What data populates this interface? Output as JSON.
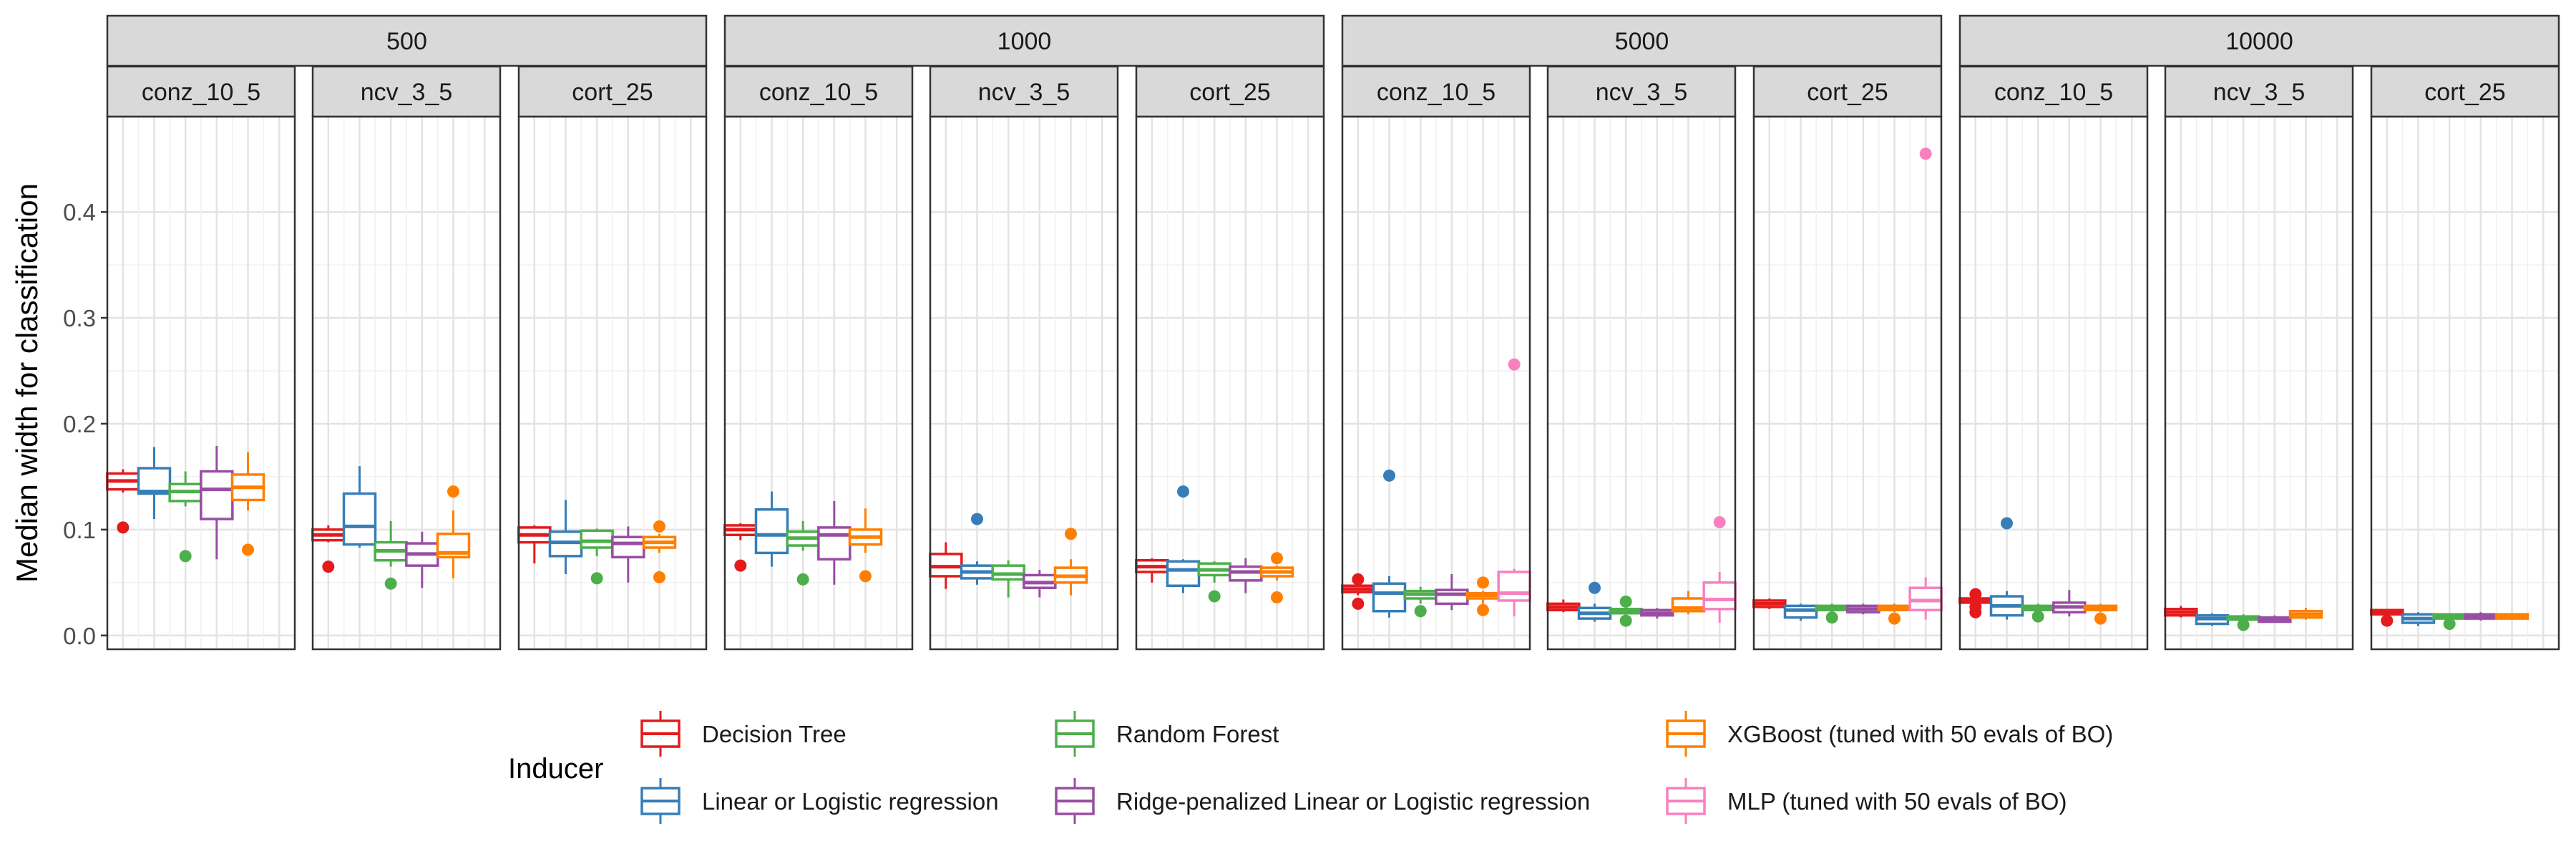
{
  "chart_data": {
    "type": "boxplot",
    "ylabel": "Median width for classification",
    "xlabel": "",
    "ylim": [
      -0.013,
      0.49
    ],
    "yticks": [
      0.0,
      0.1,
      0.2,
      0.3,
      0.4
    ],
    "ytick_labels": [
      "0.0",
      "0.1",
      "0.2",
      "0.3",
      "0.4"
    ],
    "grid": true,
    "legend_position": "bottom",
    "legend_title": "Inducer",
    "inducers": [
      {
        "name": "Decision Tree",
        "color": "#E41A1C"
      },
      {
        "name": "Linear or Logistic regression",
        "color": "#377EB8"
      },
      {
        "name": "Random Forest",
        "color": "#4DAF4A"
      },
      {
        "name": "Ridge-penalized Linear or Logistic regression",
        "color": "#984EA3"
      },
      {
        "name": "XGBoost (tuned with 50 evals of BO)",
        "color": "#FF7F00"
      },
      {
        "name": "MLP (tuned with 50 evals of BO)",
        "color": "#F781BF"
      }
    ],
    "groups": [
      {
        "label": "500",
        "panels": [
          {
            "label": "conz_10_5",
            "boxes": [
              {
                "inducer": 0,
                "min": 0.135,
                "q1": 0.138,
                "median": 0.146,
                "q3": 0.153,
                "max": 0.157,
                "outliers": [
                  0.102
                ]
              },
              {
                "inducer": 1,
                "min": 0.11,
                "q1": 0.134,
                "median": 0.136,
                "q3": 0.158,
                "max": 0.178,
                "outliers": []
              },
              {
                "inducer": 2,
                "min": 0.122,
                "q1": 0.127,
                "median": 0.136,
                "q3": 0.143,
                "max": 0.155,
                "outliers": [
                  0.075
                ]
              },
              {
                "inducer": 3,
                "min": 0.072,
                "q1": 0.11,
                "median": 0.138,
                "q3": 0.155,
                "max": 0.179,
                "outliers": []
              },
              {
                "inducer": 4,
                "min": 0.118,
                "q1": 0.128,
                "median": 0.14,
                "q3": 0.152,
                "max": 0.173,
                "outliers": [
                  0.081
                ]
              }
            ]
          },
          {
            "label": "ncv_3_5",
            "boxes": [
              {
                "inducer": 0,
                "min": 0.088,
                "q1": 0.09,
                "median": 0.095,
                "q3": 0.1,
                "max": 0.104,
                "outliers": [
                  0.065
                ]
              },
              {
                "inducer": 1,
                "min": 0.083,
                "q1": 0.086,
                "median": 0.103,
                "q3": 0.134,
                "max": 0.16,
                "outliers": []
              },
              {
                "inducer": 2,
                "min": 0.065,
                "q1": 0.071,
                "median": 0.08,
                "q3": 0.088,
                "max": 0.108,
                "outliers": [
                  0.049
                ]
              },
              {
                "inducer": 3,
                "min": 0.045,
                "q1": 0.066,
                "median": 0.077,
                "q3": 0.087,
                "max": 0.098,
                "outliers": []
              },
              {
                "inducer": 4,
                "min": 0.054,
                "q1": 0.074,
                "median": 0.078,
                "q3": 0.096,
                "max": 0.118,
                "outliers": [
                  0.136
                ]
              }
            ]
          },
          {
            "label": "cort_25",
            "boxes": [
              {
                "inducer": 0,
                "min": 0.068,
                "q1": 0.088,
                "median": 0.095,
                "q3": 0.102,
                "max": 0.104,
                "outliers": []
              },
              {
                "inducer": 1,
                "min": 0.058,
                "q1": 0.075,
                "median": 0.088,
                "q3": 0.098,
                "max": 0.128,
                "outliers": []
              },
              {
                "inducer": 2,
                "min": 0.075,
                "q1": 0.083,
                "median": 0.089,
                "q3": 0.099,
                "max": 0.101,
                "outliers": [
                  0.054
                ]
              },
              {
                "inducer": 3,
                "min": 0.05,
                "q1": 0.074,
                "median": 0.087,
                "q3": 0.093,
                "max": 0.103,
                "outliers": []
              },
              {
                "inducer": 4,
                "min": 0.078,
                "q1": 0.083,
                "median": 0.088,
                "q3": 0.093,
                "max": 0.096,
                "outliers": [
                  0.055,
                  0.103
                ]
              }
            ]
          }
        ]
      },
      {
        "label": "1000",
        "panels": [
          {
            "label": "conz_10_5",
            "boxes": [
              {
                "inducer": 0,
                "min": 0.09,
                "q1": 0.095,
                "median": 0.1,
                "q3": 0.104,
                "max": 0.106,
                "outliers": [
                  0.066
                ]
              },
              {
                "inducer": 1,
                "min": 0.065,
                "q1": 0.078,
                "median": 0.095,
                "q3": 0.119,
                "max": 0.136,
                "outliers": []
              },
              {
                "inducer": 2,
                "min": 0.08,
                "q1": 0.085,
                "median": 0.092,
                "q3": 0.098,
                "max": 0.108,
                "outliers": [
                  0.053
                ]
              },
              {
                "inducer": 3,
                "min": 0.048,
                "q1": 0.072,
                "median": 0.095,
                "q3": 0.102,
                "max": 0.127,
                "outliers": []
              },
              {
                "inducer": 4,
                "min": 0.078,
                "q1": 0.086,
                "median": 0.093,
                "q3": 0.1,
                "max": 0.12,
                "outliers": [
                  0.056
                ]
              }
            ]
          },
          {
            "label": "ncv_3_5",
            "boxes": [
              {
                "inducer": 0,
                "min": 0.044,
                "q1": 0.056,
                "median": 0.065,
                "q3": 0.077,
                "max": 0.088,
                "outliers": []
              },
              {
                "inducer": 1,
                "min": 0.048,
                "q1": 0.054,
                "median": 0.06,
                "q3": 0.066,
                "max": 0.07,
                "outliers": [
                  0.11
                ]
              },
              {
                "inducer": 2,
                "min": 0.036,
                "q1": 0.053,
                "median": 0.058,
                "q3": 0.066,
                "max": 0.071,
                "outliers": []
              },
              {
                "inducer": 3,
                "min": 0.036,
                "q1": 0.045,
                "median": 0.05,
                "q3": 0.057,
                "max": 0.062,
                "outliers": []
              },
              {
                "inducer": 4,
                "min": 0.038,
                "q1": 0.05,
                "median": 0.056,
                "q3": 0.064,
                "max": 0.072,
                "outliers": [
                  0.096
                ]
              }
            ]
          },
          {
            "label": "cort_25",
            "boxes": [
              {
                "inducer": 0,
                "min": 0.05,
                "q1": 0.06,
                "median": 0.065,
                "q3": 0.071,
                "max": 0.073,
                "outliers": []
              },
              {
                "inducer": 1,
                "min": 0.04,
                "q1": 0.047,
                "median": 0.062,
                "q3": 0.07,
                "max": 0.072,
                "outliers": [
                  0.136
                ]
              },
              {
                "inducer": 2,
                "min": 0.05,
                "q1": 0.057,
                "median": 0.062,
                "q3": 0.068,
                "max": 0.07,
                "outliers": [
                  0.037
                ]
              },
              {
                "inducer": 3,
                "min": 0.04,
                "q1": 0.052,
                "median": 0.06,
                "q3": 0.065,
                "max": 0.073,
                "outliers": []
              },
              {
                "inducer": 4,
                "min": 0.052,
                "q1": 0.056,
                "median": 0.06,
                "q3": 0.064,
                "max": 0.066,
                "outliers": [
                  0.036,
                  0.073
                ]
              }
            ]
          }
        ]
      },
      {
        "label": "5000",
        "panels": [
          {
            "label": "conz_10_5",
            "boxes": [
              {
                "inducer": 0,
                "min": 0.038,
                "q1": 0.041,
                "median": 0.044,
                "q3": 0.047,
                "max": 0.049,
                "outliers": [
                  0.03,
                  0.053
                ]
              },
              {
                "inducer": 1,
                "min": 0.017,
                "q1": 0.023,
                "median": 0.04,
                "q3": 0.049,
                "max": 0.056,
                "outliers": [
                  0.151
                ]
              },
              {
                "inducer": 2,
                "min": 0.03,
                "q1": 0.035,
                "median": 0.039,
                "q3": 0.042,
                "max": 0.046,
                "outliers": [
                  0.023
                ]
              },
              {
                "inducer": 3,
                "min": 0.024,
                "q1": 0.03,
                "median": 0.039,
                "q3": 0.043,
                "max": 0.058,
                "outliers": []
              },
              {
                "inducer": 4,
                "min": 0.03,
                "q1": 0.035,
                "median": 0.038,
                "q3": 0.04,
                "max": 0.042,
                "outliers": [
                  0.024,
                  0.05
                ]
              },
              {
                "inducer": 5,
                "min": 0.018,
                "q1": 0.033,
                "median": 0.04,
                "q3": 0.06,
                "max": 0.063,
                "outliers": [
                  0.256
                ]
              }
            ]
          },
          {
            "label": "ncv_3_5",
            "boxes": [
              {
                "inducer": 0,
                "min": 0.022,
                "q1": 0.024,
                "median": 0.027,
                "q3": 0.03,
                "max": 0.034,
                "outliers": []
              },
              {
                "inducer": 1,
                "min": 0.013,
                "q1": 0.016,
                "median": 0.021,
                "q3": 0.026,
                "max": 0.03,
                "outliers": [
                  0.045
                ]
              },
              {
                "inducer": 2,
                "min": 0.018,
                "q1": 0.021,
                "median": 0.023,
                "q3": 0.025,
                "max": 0.027,
                "outliers": [
                  0.014,
                  0.032
                ]
              },
              {
                "inducer": 3,
                "min": 0.016,
                "q1": 0.019,
                "median": 0.021,
                "q3": 0.024,
                "max": 0.026,
                "outliers": []
              },
              {
                "inducer": 4,
                "min": 0.02,
                "q1": 0.023,
                "median": 0.026,
                "q3": 0.035,
                "max": 0.042,
                "outliers": []
              },
              {
                "inducer": 5,
                "min": 0.012,
                "q1": 0.025,
                "median": 0.034,
                "q3": 0.05,
                "max": 0.06,
                "outliers": [
                  0.107
                ]
              }
            ]
          },
          {
            "label": "cort_25",
            "boxes": [
              {
                "inducer": 0,
                "min": 0.025,
                "q1": 0.027,
                "median": 0.03,
                "q3": 0.033,
                "max": 0.035,
                "outliers": []
              },
              {
                "inducer": 1,
                "min": 0.014,
                "q1": 0.017,
                "median": 0.024,
                "q3": 0.028,
                "max": 0.03,
                "outliers": []
              },
              {
                "inducer": 2,
                "min": 0.022,
                "q1": 0.024,
                "median": 0.026,
                "q3": 0.028,
                "max": 0.03,
                "outliers": [
                  0.017
                ]
              },
              {
                "inducer": 3,
                "min": 0.02,
                "q1": 0.022,
                "median": 0.025,
                "q3": 0.028,
                "max": 0.03,
                "outliers": []
              },
              {
                "inducer": 4,
                "min": 0.022,
                "q1": 0.024,
                "median": 0.026,
                "q3": 0.028,
                "max": 0.03,
                "outliers": [
                  0.016
                ]
              },
              {
                "inducer": 5,
                "min": 0.015,
                "q1": 0.024,
                "median": 0.033,
                "q3": 0.045,
                "max": 0.055,
                "outliers": [
                  0.455
                ]
              }
            ]
          }
        ]
      },
      {
        "label": "10000",
        "panels": [
          {
            "label": "conz_10_5",
            "boxes": [
              {
                "inducer": 0,
                "min": 0.03,
                "q1": 0.031,
                "median": 0.033,
                "q3": 0.035,
                "max": 0.037,
                "outliers": [
                  0.022,
                  0.027,
                  0.039
                ]
              },
              {
                "inducer": 1,
                "min": 0.015,
                "q1": 0.019,
                "median": 0.028,
                "q3": 0.037,
                "max": 0.042,
                "outliers": [
                  0.106
                ]
              },
              {
                "inducer": 2,
                "min": 0.022,
                "q1": 0.024,
                "median": 0.026,
                "q3": 0.028,
                "max": 0.03,
                "outliers": [
                  0.018
                ]
              },
              {
                "inducer": 3,
                "min": 0.018,
                "q1": 0.022,
                "median": 0.027,
                "q3": 0.031,
                "max": 0.043,
                "outliers": []
              },
              {
                "inducer": 4,
                "min": 0.022,
                "q1": 0.024,
                "median": 0.026,
                "q3": 0.028,
                "max": 0.03,
                "outliers": [
                  0.016
                ]
              }
            ]
          },
          {
            "label": "ncv_3_5",
            "boxes": [
              {
                "inducer": 0,
                "min": 0.017,
                "q1": 0.019,
                "median": 0.022,
                "q3": 0.025,
                "max": 0.028,
                "outliers": []
              },
              {
                "inducer": 1,
                "min": 0.009,
                "q1": 0.011,
                "median": 0.016,
                "q3": 0.019,
                "max": 0.021,
                "outliers": []
              },
              {
                "inducer": 2,
                "min": 0.012,
                "q1": 0.015,
                "median": 0.016,
                "q3": 0.018,
                "max": 0.02,
                "outliers": [
                  0.01
                ]
              },
              {
                "inducer": 3,
                "min": 0.012,
                "q1": 0.013,
                "median": 0.015,
                "q3": 0.017,
                "max": 0.019,
                "outliers": []
              },
              {
                "inducer": 4,
                "min": 0.015,
                "q1": 0.017,
                "median": 0.02,
                "q3": 0.023,
                "max": 0.026,
                "outliers": []
              }
            ]
          },
          {
            "label": "cort_25",
            "boxes": [
              {
                "inducer": 0,
                "min": 0.018,
                "q1": 0.02,
                "median": 0.022,
                "q3": 0.024,
                "max": 0.025,
                "outliers": [
                  0.014
                ]
              },
              {
                "inducer": 1,
                "min": 0.009,
                "q1": 0.012,
                "median": 0.016,
                "q3": 0.02,
                "max": 0.022,
                "outliers": []
              },
              {
                "inducer": 2,
                "min": 0.015,
                "q1": 0.016,
                "median": 0.018,
                "q3": 0.02,
                "max": 0.021,
                "outliers": [
                  0.011
                ]
              },
              {
                "inducer": 3,
                "min": 0.014,
                "q1": 0.016,
                "median": 0.018,
                "q3": 0.02,
                "max": 0.022,
                "outliers": []
              },
              {
                "inducer": 4,
                "min": 0.015,
                "q1": 0.016,
                "median": 0.018,
                "q3": 0.02,
                "max": 0.021,
                "outliers": []
              }
            ]
          }
        ]
      }
    ]
  }
}
